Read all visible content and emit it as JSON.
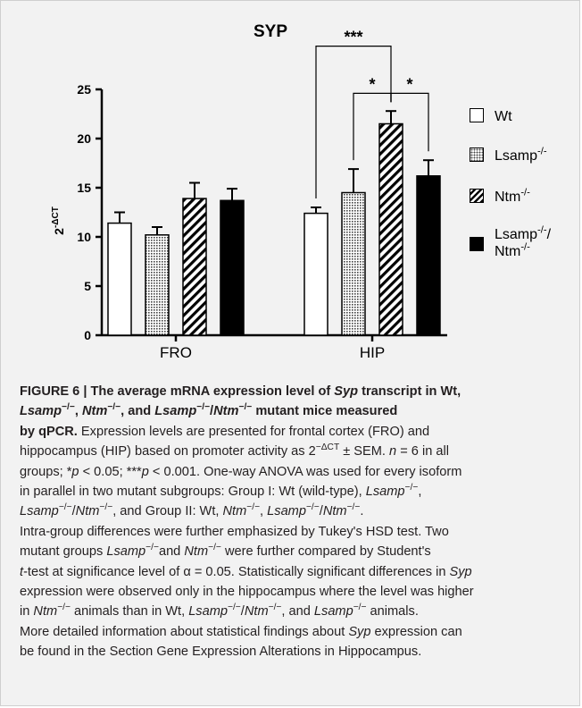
{
  "chart_data": {
    "type": "bar",
    "title": "SYP",
    "ylabel": "2",
    "ylabel_sup": "-ΔCT",
    "xlabel": "",
    "ylim": [
      0,
      25
    ],
    "yticks": [
      "0",
      "5",
      "10",
      "15",
      "20",
      "25"
    ],
    "categories": [
      "FRO",
      "HIP"
    ],
    "series": [
      {
        "name": "Wt",
        "name_sup": "",
        "name_line2": "",
        "name_line2_sup": "",
        "pattern": "white",
        "values": [
          11.4,
          12.4
        ],
        "errors": [
          1.1,
          0.6
        ]
      },
      {
        "name": "Lsamp",
        "name_sup": "-/-",
        "name_line2": "",
        "name_line2_sup": "",
        "pattern": "dots",
        "values": [
          10.2,
          14.5
        ],
        "errors": [
          0.8,
          2.4
        ]
      },
      {
        "name": "Ntm",
        "name_sup": "-/-",
        "name_line2": "",
        "name_line2_sup": "",
        "pattern": "hatch",
        "values": [
          13.9,
          21.5
        ],
        "errors": [
          1.6,
          1.3
        ]
      },
      {
        "name": "Lsamp",
        "name_sup": "-/-",
        "name_tail": "/",
        "name_line2": "Ntm",
        "name_line2_sup": "-/-",
        "pattern": "black",
        "values": [
          13.7,
          16.2
        ],
        "errors": [
          1.2,
          1.6
        ]
      }
    ],
    "significance": [
      {
        "from_series": 0,
        "to_series": 2,
        "category": 1,
        "label": "***"
      },
      {
        "from_series": 1,
        "to_series": 2,
        "category": 1,
        "label": "*"
      },
      {
        "from_series": 2,
        "to_series": 3,
        "category": 1,
        "label": "*"
      }
    ],
    "legend_position": "right",
    "grid": false
  },
  "caption": {
    "l1a": "FIGURE 6 | The average mRNA expression level of ",
    "l1b": "Syp",
    "l1c": " transcript in Wt,",
    "l2a": "Lsamp",
    "l2a_sup": "−/−",
    "l2b": ", ",
    "l2c": "Ntm",
    "l2c_sup": "−/−",
    "l2d": ", and ",
    "l2e": "Lsamp",
    "l2e_sup": "−/−",
    "l2f": "/",
    "l2g": "Ntm",
    "l2g_sup": "−/−",
    "l2h": " mutant mice measured",
    "l3": "by qPCR.",
    "l3b": " Expression levels are presented for frontal cortex (FRO) and",
    "l4a": "hippocampus (HIP) based on promoter activity as 2",
    "l4a_sup": "−ΔCT",
    "l4b": " ± SEM. ",
    "l4c": "n",
    "l4d": " = 6 in all",
    "l5a": "groups; *",
    "l5b": "p",
    "l5c": " < 0.05; ***",
    "l5d": "p",
    "l5e": " < 0.001. One-way ANOVA was used for every isoform",
    "l6a": "in parallel in two mutant subgroups: Group I: Wt (wild-type), ",
    "l6b": "Lsamp",
    "l6b_sup": "−/−",
    "l6c": ",",
    "l7a": "Lsamp",
    "l7a_sup": "−/−",
    "l7b": "/",
    "l7c": "Ntm",
    "l7c_sup": "−/−",
    "l7d": ", and Group II: Wt, ",
    "l7e": "Ntm",
    "l7e_sup": "−/−",
    "l7f": ", ",
    "l7g": "Lsamp",
    "l7g_sup": "−/−",
    "l7h": "/",
    "l7i": "Ntm",
    "l7i_sup": "−/−",
    "l7j": ".",
    "l8": "Intra-group differences were further emphasized by Tukey's HSD test. Two",
    "l9a": "mutant groups ",
    "l9b": "Lsamp",
    "l9b_sup": "−/−",
    "l9c": "and ",
    "l9d": "Ntm",
    "l9d_sup": "−/−",
    "l9e": " were further compared by Student's",
    "l10a": "t",
    "l10b": "-test at significance level of α = 0.05. Statistically significant differences in ",
    "l10c": "Syp",
    "l11": "expression were observed only in the hippocampus where the level was higher",
    "l12a": "in ",
    "l12b": "Ntm",
    "l12b_sup": "−/−",
    "l12c": " animals than in Wt, ",
    "l12d": "Lsamp",
    "l12d_sup": "−/−",
    "l12e": "/",
    "l12f": "Ntm",
    "l12f_sup": "−/−",
    "l12g": ", and ",
    "l12h": "Lsamp",
    "l12h_sup": "−/−",
    "l12i": " animals.",
    "l13a": "More detailed information about statistical findings about ",
    "l13b": "Syp",
    "l13c": " expression can",
    "l14": "be found in the Section Gene Expression Alterations in Hippocampus."
  }
}
